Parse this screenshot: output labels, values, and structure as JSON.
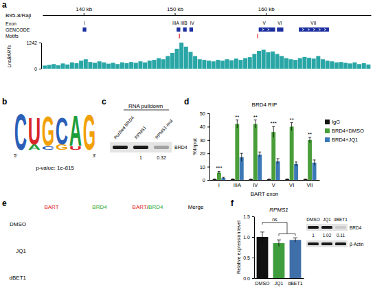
{
  "figure": {
    "a": {
      "letter": "a",
      "label": "B95-8/Raji",
      "xlim": [
        135.5,
        171.5
      ],
      "xticks": [
        {
          "value": 140,
          "label": "140 kb"
        },
        {
          "value": 150,
          "label": "150 kb"
        },
        {
          "value": 160,
          "label": "160 kb"
        }
      ],
      "row_labels": [
        "Exon",
        "GENCODE",
        "Motifs"
      ],
      "exons": [
        {
          "label": "I",
          "pos": 140.1
        },
        {
          "label": "IIIA",
          "pos": 150.1
        },
        {
          "label": "IIIB",
          "pos": 151.0
        },
        {
          "label": "IV",
          "pos": 151.9
        },
        {
          "label": "V",
          "pos": 159.8
        },
        {
          "label": "VI",
          "pos": 161.5
        },
        {
          "label": "VII",
          "pos": 165.2
        }
      ],
      "gencode": [
        {
          "start": 139.9,
          "end": 140.3
        },
        {
          "start": 150.2,
          "end": 150.6
        },
        {
          "start": 150.9,
          "end": 151.3
        },
        {
          "start": 151.6,
          "end": 152.0
        },
        {
          "start": 159.2,
          "end": 161.0
        },
        {
          "start": 161.2,
          "end": 161.9
        },
        {
          "start": 163.6,
          "end": 166.9
        }
      ],
      "motifs": [
        150.5,
        159.1
      ],
      "track": {
        "name": "LncBARTs",
        "color": "#2aa6a6",
        "bins": [
          135.5,
          136,
          136.5,
          137,
          137.5,
          138,
          138.5,
          139,
          139.5,
          140,
          140.5,
          141,
          141.5,
          142,
          142.5,
          143,
          143.5,
          144,
          144.5,
          145,
          145.5,
          146,
          146.5,
          147,
          147.5,
          148,
          148.5,
          149,
          149.5,
          150,
          150.5,
          151,
          151.5,
          152,
          152.5,
          153,
          153.5,
          154,
          154.5,
          155,
          155.5,
          156,
          156.5,
          157,
          157.5,
          158,
          158.5,
          159,
          159.5,
          160,
          160.5,
          161,
          161.5,
          162,
          162.5,
          163,
          163.5,
          164,
          164.5,
          165,
          165.5,
          166,
          166.5,
          167,
          167.5,
          168,
          168.5,
          169,
          169.5,
          170,
          170.5,
          171,
          171.5
        ],
        "values": [
          150,
          180,
          220,
          160,
          250,
          200,
          300,
          260,
          380,
          450,
          320,
          280,
          350,
          300,
          240,
          280,
          220,
          300,
          260,
          320,
          280,
          350,
          300,
          380,
          420,
          500,
          450,
          600,
          750,
          950,
          1242,
          1050,
          800,
          600,
          450,
          420,
          380,
          350,
          420,
          380,
          450,
          400,
          480,
          420,
          500,
          550,
          700,
          850,
          900,
          780,
          820,
          700,
          600,
          500,
          450,
          420,
          500,
          560,
          520,
          480,
          600,
          450,
          380,
          350,
          300,
          320,
          280,
          250,
          300,
          220,
          260,
          200
        ],
        "ylim": [
          0,
          1242
        ],
        "yticks": [
          0,
          1242
        ]
      }
    },
    "b": {
      "letter": "b",
      "positions": [
        [
          {
            "letter": "C",
            "height": 0.95
          }
        ],
        [
          {
            "letter": "U",
            "height": 0.72
          },
          {
            "letter": "A",
            "height": 0.14
          }
        ],
        [
          {
            "letter": "G",
            "height": 0.78
          },
          {
            "letter": "C",
            "height": 0.1
          }
        ],
        [
          {
            "letter": "C",
            "height": 0.72
          },
          {
            "letter": "G",
            "height": 0.14
          }
        ],
        [
          {
            "letter": "A",
            "height": 0.8
          },
          {
            "letter": "U",
            "height": 0.1
          }
        ],
        [
          {
            "letter": "G",
            "height": 0.92
          }
        ]
      ],
      "colors": {
        "A": "#1e9e3a",
        "C": "#2b5fb8",
        "G": "#f2a007",
        "U": "#d8262b"
      },
      "ends": [
        "5'",
        "3'"
      ],
      "pvalue": "p-value: 1e-815"
    },
    "c": {
      "letter": "c",
      "title": "RNA pulldown",
      "lanes": [
        "Purified BRD4",
        "RPMS1",
        "RPMS1-mut"
      ],
      "protein": "BRD4",
      "quant": [
        null,
        1,
        0.32
      ]
    },
    "e": {
      "letter": "e",
      "columns": [
        {
          "parts": [
            {
              "text": "BART",
              "color": "#e02020"
            }
          ]
        },
        {
          "parts": [
            {
              "text": "BRD4",
              "color": "#1fa82f"
            }
          ]
        },
        {
          "parts": [
            {
              "text": "BART",
              "color": "#e02020"
            },
            {
              "text": "/",
              "color": "#000000"
            },
            {
              "text": "BRD4",
              "color": "#1fa82f"
            }
          ]
        },
        {
          "parts": [
            {
              "text": "Merge",
              "color": "#000000"
            }
          ]
        }
      ],
      "rows": [
        "DMSO",
        "JQ1",
        "dBET1"
      ]
    },
    "f_blot": {
      "lanes": [
        "DMSO",
        "JQ1",
        "dBET1"
      ],
      "rows": [
        "BRD4",
        "β-Actin"
      ],
      "quant": [
        1,
        1.02,
        0.11
      ]
    }
  },
  "chart_data": [
    {
      "type": "bar",
      "letter": "d",
      "title": "BRD4 RIP",
      "categories": [
        "I",
        "IIIA",
        "IV",
        "V",
        "VI",
        "VII"
      ],
      "x_label": "BART exon",
      "y_label": "%Input",
      "ylim": [
        0,
        50
      ],
      "yticks": [
        0,
        10,
        20,
        30,
        40,
        50
      ],
      "legend": "right",
      "series": [
        {
          "name": "IgG",
          "color": "#111111",
          "values": [
            0.5,
            0.6,
            0.5,
            0.5,
            0.6,
            0.5
          ],
          "errors": [
            0.2,
            0.2,
            0.2,
            0.2,
            0.2,
            0.2
          ]
        },
        {
          "name": "BRD4+DMSO",
          "color": "#4a9e3a",
          "values": [
            5.5,
            42,
            42,
            36,
            40,
            30
          ],
          "errors": [
            1,
            3,
            3,
            4,
            3,
            2
          ]
        },
        {
          "name": "BRD4+JQ1",
          "color": "#3b78b5",
          "values": [
            1.5,
            17,
            19,
            14,
            12,
            13
          ],
          "errors": [
            0.5,
            3,
            2,
            2,
            1.5,
            2
          ]
        }
      ],
      "significance": [
        "***",
        "**",
        "**",
        "***",
        "**",
        "**"
      ]
    },
    {
      "type": "bar",
      "letter": "f",
      "title": "RPMS1",
      "categories": [
        "DMSO",
        "JQ1",
        "dBET1"
      ],
      "values": [
        1.0,
        0.85,
        0.93
      ],
      "errors": [
        0.12,
        0.08,
        0.05
      ],
      "colors": [
        "#111111",
        "#3e9e3e",
        "#3f6fa8"
      ],
      "y_label": "Relative expression level",
      "ylim": [
        0,
        1.5
      ],
      "yticks": [
        {
          "value": 0,
          "label": "0.0"
        },
        {
          "value": 0.5,
          "label": "0.5"
        },
        {
          "value": 1,
          "label": "1.0"
        },
        {
          "value": 1.5,
          "label": "1.5"
        }
      ],
      "annotation": "ns"
    }
  ]
}
